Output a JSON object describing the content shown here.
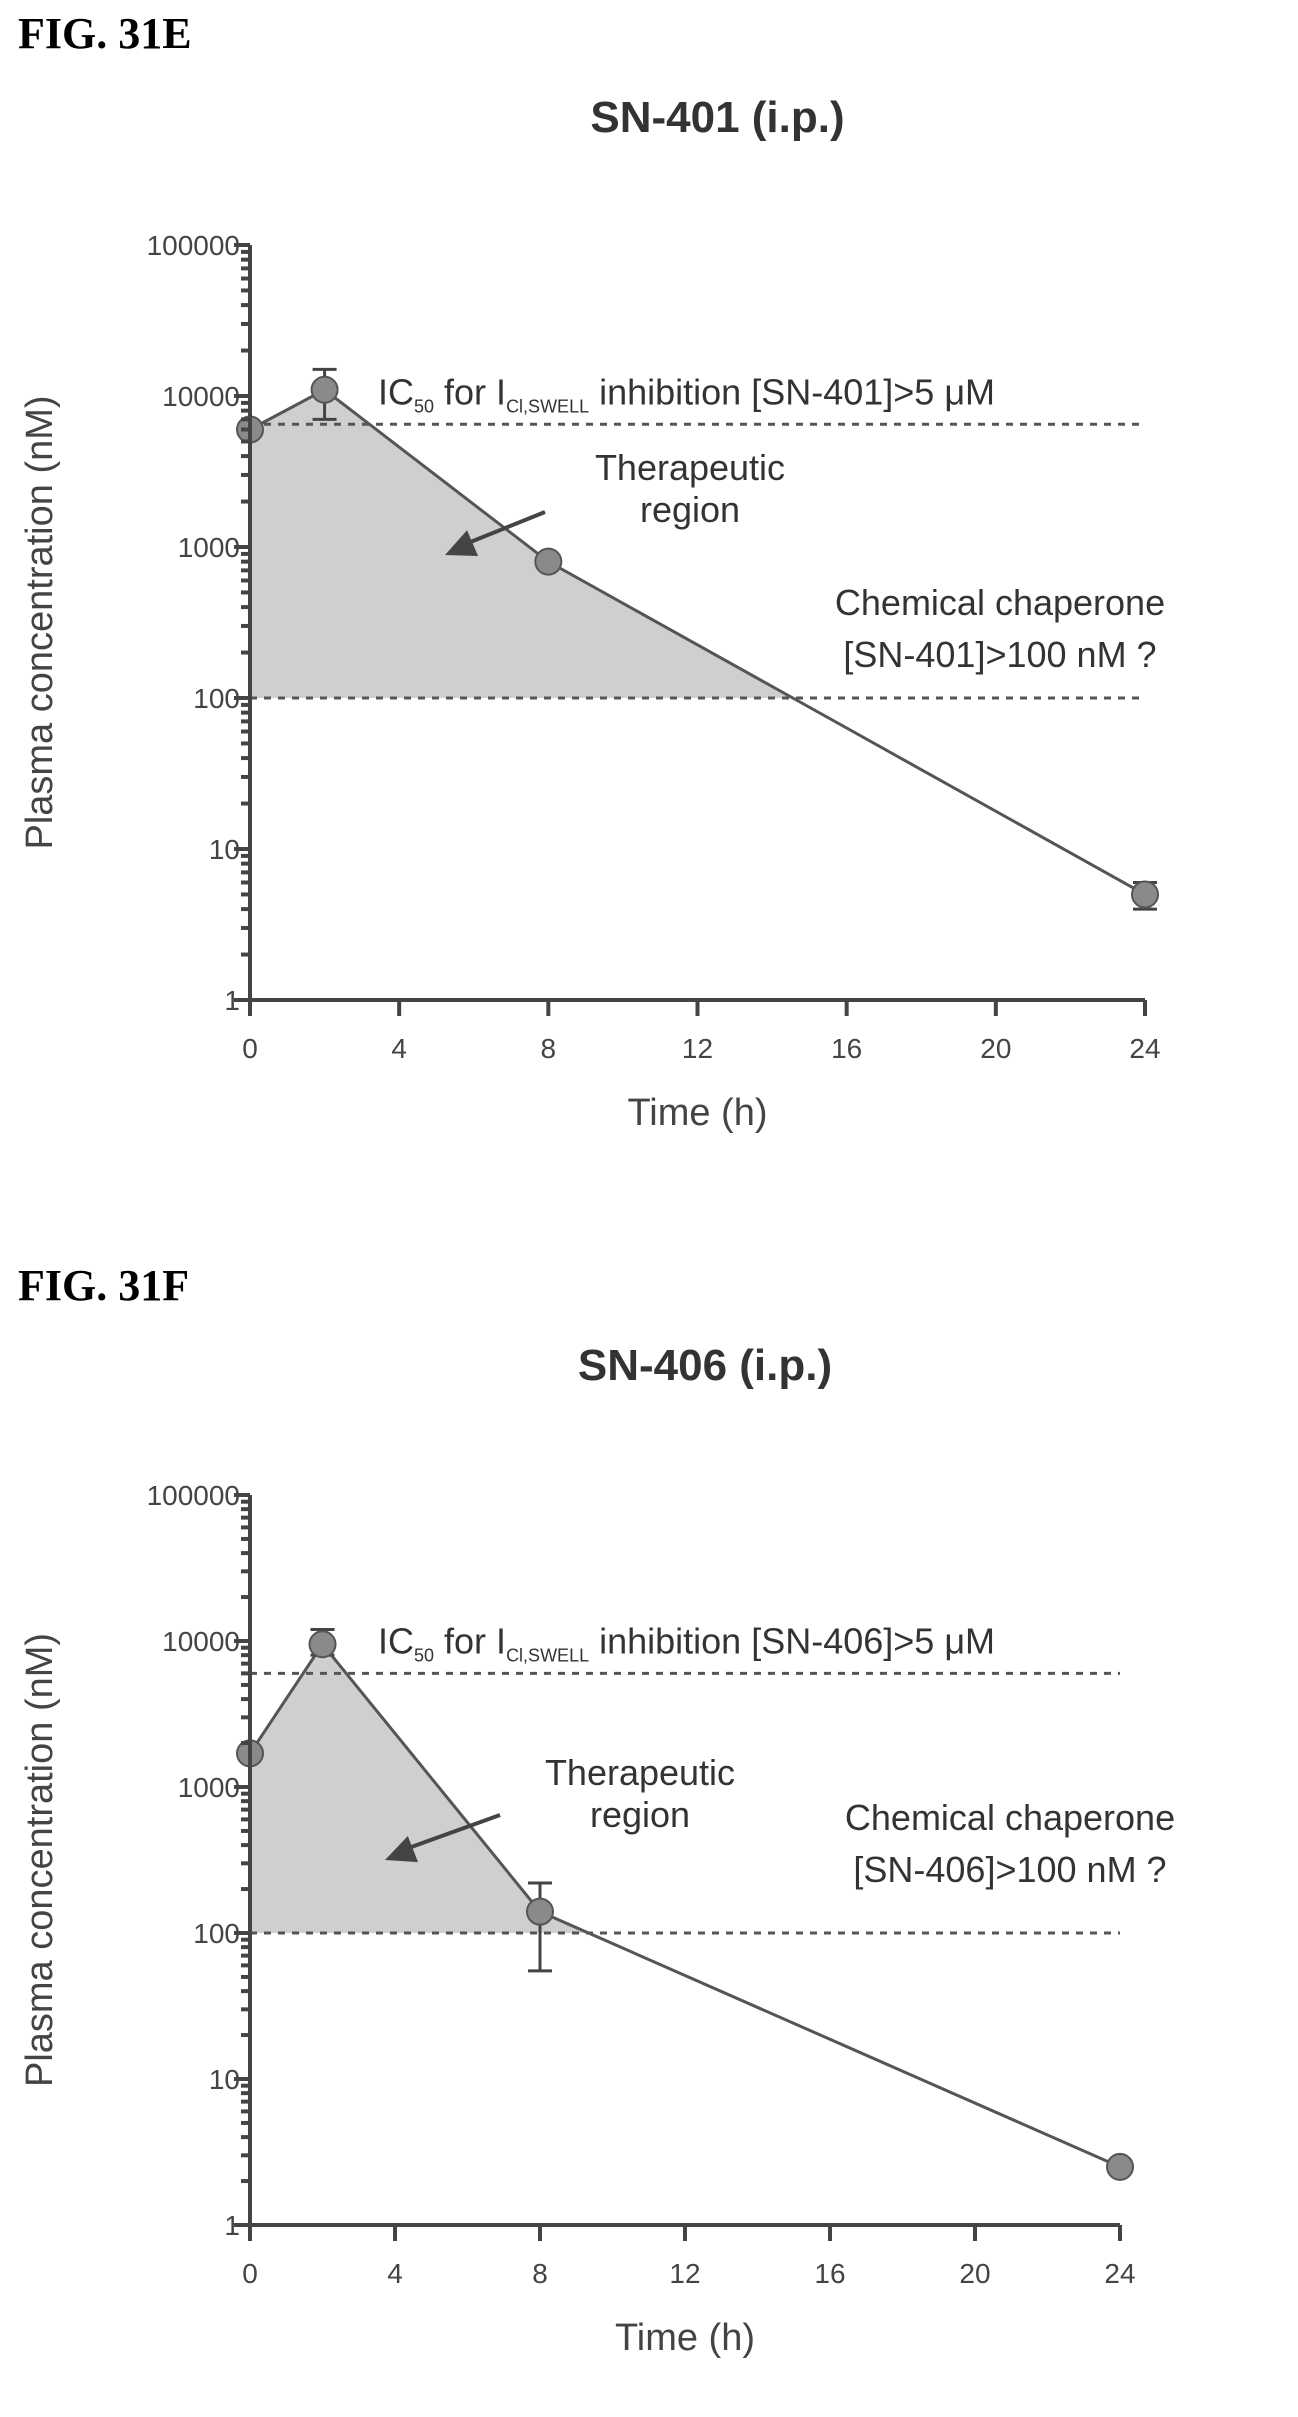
{
  "chart_data": [
    {
      "fig_label": "FIG. 31E",
      "type": "line",
      "title": "SN-401 (i.p.)",
      "xlabel": "Time (h)",
      "ylabel": "Plasma concentration (nM)",
      "yscale": "log",
      "xlim": [
        0,
        24
      ],
      "ylim": [
        1,
        100000
      ],
      "xticks": [
        "0",
        "4",
        "8",
        "12",
        "16",
        "20",
        "24"
      ],
      "yticks": [
        "1",
        "10",
        "100",
        "1000",
        "10000",
        "100000"
      ],
      "series": [
        {
          "x": [
            0,
            2,
            8,
            24
          ],
          "y": [
            6000,
            11000,
            800,
            5
          ],
          "y_err": [
            [
              6000,
              6000
            ],
            [
              7000,
              15000
            ],
            [
              800,
              800
            ],
            [
              4,
              6
            ]
          ]
        }
      ],
      "thresholds": {
        "ic50": {
          "y": 6500,
          "xmax": 24,
          "prefix": "IC",
          "sub1": "50",
          "mid": " for I",
          "sub2": "Cl,SWELL",
          "suffix": " inhibition [SN-401]>5 μM"
        },
        "chaperone": {
          "y": 100,
          "xmax": 24,
          "line1": "Chemical chaperone",
          "line2": "[SN-401]>100 nM ?"
        }
      },
      "region_label": [
        "Therapeutic",
        "region"
      ]
    },
    {
      "fig_label": "FIG. 31F",
      "type": "line",
      "title": "SN-406 (i.p.)",
      "xlabel": "Time (h)",
      "ylabel": "Plasma concentration (nM)",
      "yscale": "log",
      "xlim": [
        0,
        24
      ],
      "ylim": [
        1,
        100000
      ],
      "xticks": [
        "0",
        "4",
        "8",
        "12",
        "16",
        "20",
        "24"
      ],
      "yticks": [
        "1",
        "10",
        "100",
        "1000",
        "10000",
        "100000"
      ],
      "series": [
        {
          "x": [
            0,
            2,
            8,
            24
          ],
          "y": [
            1700,
            9500,
            140,
            2.5
          ],
          "y_err": [
            [
              1700,
              1700
            ],
            [
              8000,
              12000
            ],
            [
              55,
              220
            ],
            [
              2.5,
              2.5
            ]
          ]
        }
      ],
      "thresholds": {
        "ic50": {
          "y": 6000,
          "xmax": 24,
          "prefix": "IC",
          "sub1": "50",
          "mid": " for I",
          "sub2": "Cl,SWELL",
          "suffix": " inhibition [SN-406]>5 μM"
        },
        "chaperone": {
          "y": 100,
          "xmax": 24,
          "line1": "Chemical chaperone",
          "line2": "[SN-406]>100 nM ?"
        }
      },
      "region_label": [
        "Therapeutic",
        "region"
      ]
    }
  ]
}
